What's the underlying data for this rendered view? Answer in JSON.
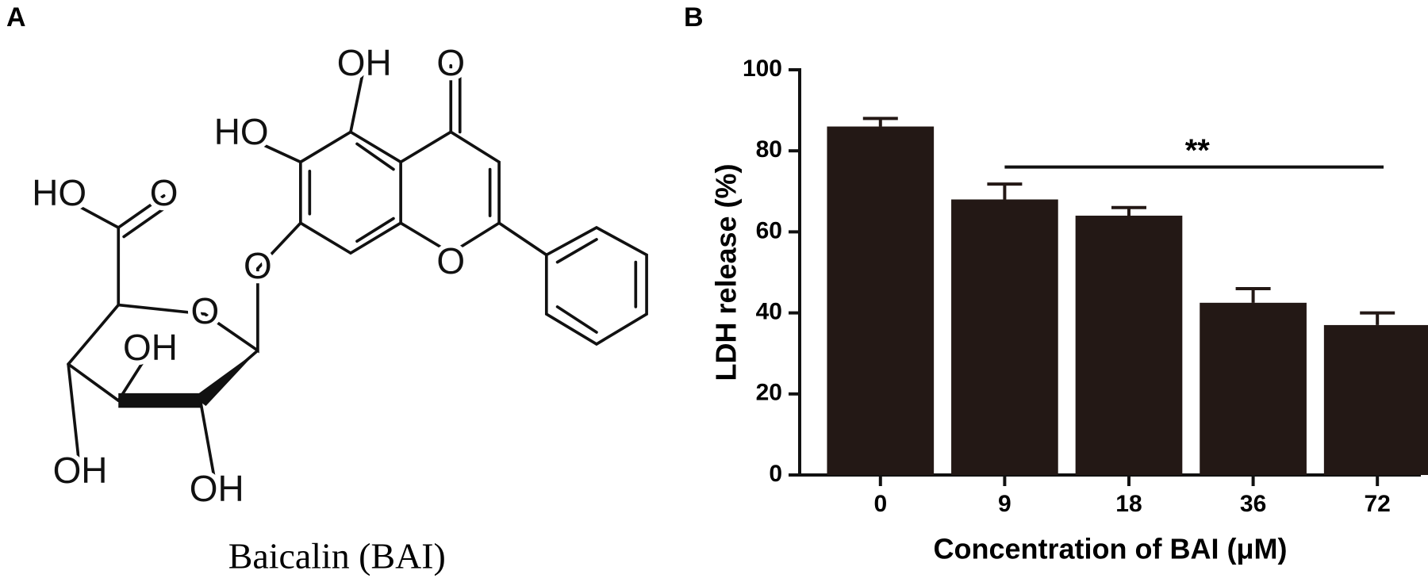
{
  "panel_labels": [
    "A",
    "B"
  ],
  "structure": {
    "caption": "Baicalin (BAI)",
    "atom_labels": [
      "OH",
      "O",
      "HO",
      "HO",
      "O",
      "O",
      "O",
      "O",
      "OH",
      "OH",
      "OH"
    ]
  },
  "chart_data": {
    "type": "bar",
    "xlabel": "Concentration of BAI (μM)",
    "ylabel": "LDH release (%)",
    "categories": [
      "0",
      "9",
      "18",
      "36",
      "72"
    ],
    "values": [
      86,
      68,
      64,
      42.5,
      37
    ],
    "errors": [
      2,
      3.8,
      2,
      3.5,
      3
    ],
    "color": "#231815",
    "ylim": [
      0,
      100
    ],
    "yticks": [
      0,
      20,
      40,
      60,
      80,
      100
    ],
    "significance": {
      "label": "**",
      "from": 1,
      "to": 4,
      "y": 76
    }
  }
}
